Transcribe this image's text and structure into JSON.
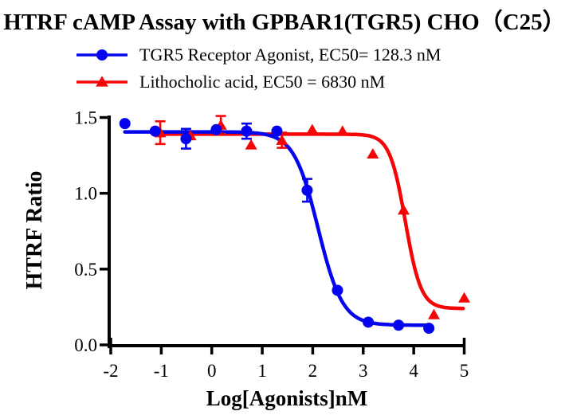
{
  "title": "HTRF cAMP Assay with GPBAR1(TGR5) CHO（C25）",
  "legend": [
    {
      "label": "TGR5 Receptor Agonist, EC50= 128.3 nM",
      "marker": "circle",
      "color": "#0404ee"
    },
    {
      "label": "Lithocholic acid, EC50 = 6830 nM",
      "marker": "triangle",
      "color": "#f50505"
    }
  ],
  "chart_data": {
    "type": "scatter",
    "subtype": "dose-response",
    "title": "HTRF cAMP Assay with GPBAR1(TGR5) CHO（C25）",
    "xlabel": "Log[Agonists]nM",
    "ylabel": "HTRF Ratio",
    "xlim": [
      -2,
      5
    ],
    "ylim": [
      0,
      1.5
    ],
    "grid": false,
    "legend_position": "top",
    "x_ticks": [
      {
        "value": -2,
        "label": "-2"
      },
      {
        "value": -1,
        "label": "-1"
      },
      {
        "value": 0,
        "label": "0"
      },
      {
        "value": 1,
        "label": "1"
      },
      {
        "value": 2,
        "label": "2"
      },
      {
        "value": 3,
        "label": "3"
      },
      {
        "value": 4,
        "label": "4"
      },
      {
        "value": 5,
        "label": "5"
      }
    ],
    "y_ticks": [
      {
        "value": 0,
        "label": "0.0"
      },
      {
        "value": 0.5,
        "label": "0.5"
      },
      {
        "value": 1,
        "label": "1.0"
      },
      {
        "value": 1.5,
        "label": "1.5"
      }
    ],
    "series": [
      {
        "id": "tgr5-receptor-agonist",
        "name": "TGR5 Receptor Agonist",
        "ec50_nM": 128.3,
        "color": "#0404ee",
        "marker": "circle",
        "x": [
          -1.72,
          -1.12,
          -0.51,
          0.09,
          0.69,
          1.29,
          1.89,
          2.49,
          3.1,
          3.7,
          4.3
        ],
        "y": [
          1.46,
          1.41,
          1.36,
          1.42,
          1.41,
          1.41,
          1.02,
          0.36,
          0.15,
          0.13,
          0.11
        ],
        "err": [
          0,
          0,
          0.065,
          0,
          0.05,
          0,
          0.075,
          0,
          0,
          0,
          0
        ],
        "fit": {
          "top": 1.405,
          "bottom": 0.13,
          "logec50": 2.108,
          "hill": 1.8,
          "x_range": [
            -1.72,
            4.3
          ]
        }
      },
      {
        "id": "lithocholic-acid",
        "name": "Lithocholic acid",
        "ec50_nM": 6830,
        "color": "#f50505",
        "marker": "triangle",
        "x": [
          -1.02,
          -0.42,
          0.18,
          0.78,
          1.39,
          1.99,
          2.59,
          3.19,
          3.8,
          4.4,
          5.0
        ],
        "y": [
          1.4,
          1.38,
          1.45,
          1.32,
          1.35,
          1.42,
          1.41,
          1.26,
          0.89,
          0.2,
          0.31
        ],
        "err": [
          0.075,
          0,
          0.06,
          0,
          0.05,
          0,
          0,
          0,
          0,
          0,
          0
        ],
        "fit": {
          "top": 1.39,
          "bottom": 0.24,
          "logec50": 3.834,
          "hill": 2.8,
          "x_range": [
            -1.02,
            5.0
          ]
        }
      }
    ],
    "draw_order": [
      1,
      0
    ]
  }
}
